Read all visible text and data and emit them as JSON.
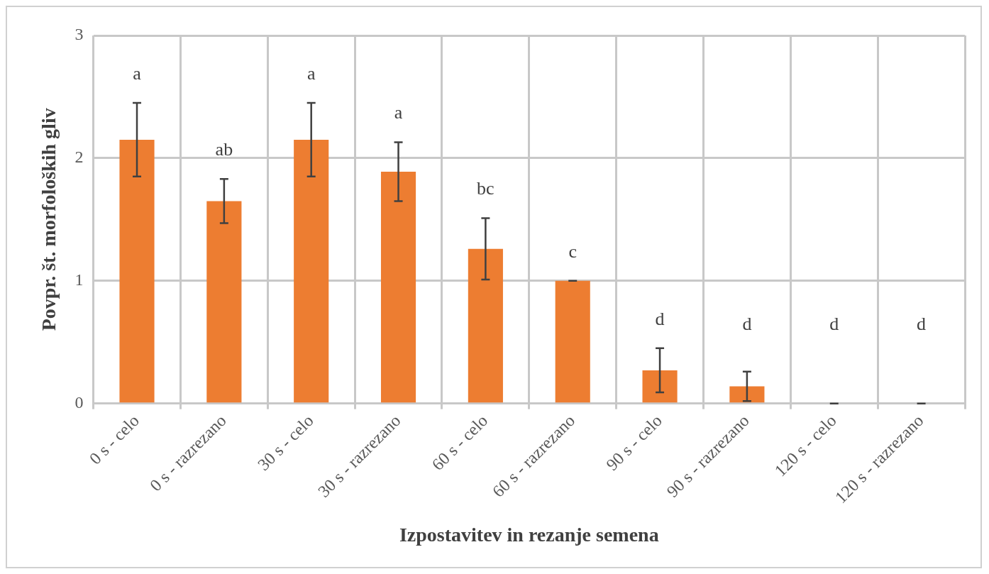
{
  "chart_data": {
    "type": "bar",
    "xlabel": "Izpostavitev in rezanje semena",
    "ylabel": "Povpr. št. morfoloških gliv",
    "categories": [
      "0 s - celo",
      "0 s - razrezano",
      "30 s - celo",
      "30 s - razrezano",
      "60 s - celo",
      "60 s - razrezano",
      "90 s - celo",
      "90 s - razrezano",
      "120 s - celo",
      "120 s - razrezano"
    ],
    "values": [
      2.15,
      1.65,
      2.15,
      1.89,
      1.26,
      1.0,
      0.27,
      0.14,
      0,
      0
    ],
    "errors": [
      0.3,
      0.18,
      0.3,
      0.24,
      0.25,
      0,
      0.18,
      0.12,
      0,
      0
    ],
    "color": "#ed7d31",
    "ylim": [
      0,
      3
    ],
    "yticks": [
      0,
      1,
      2,
      3
    ],
    "grid": true,
    "annotations": [
      "a",
      "ab",
      "a",
      "a",
      "bc",
      "c",
      "d",
      "d",
      "d",
      "d"
    ]
  }
}
